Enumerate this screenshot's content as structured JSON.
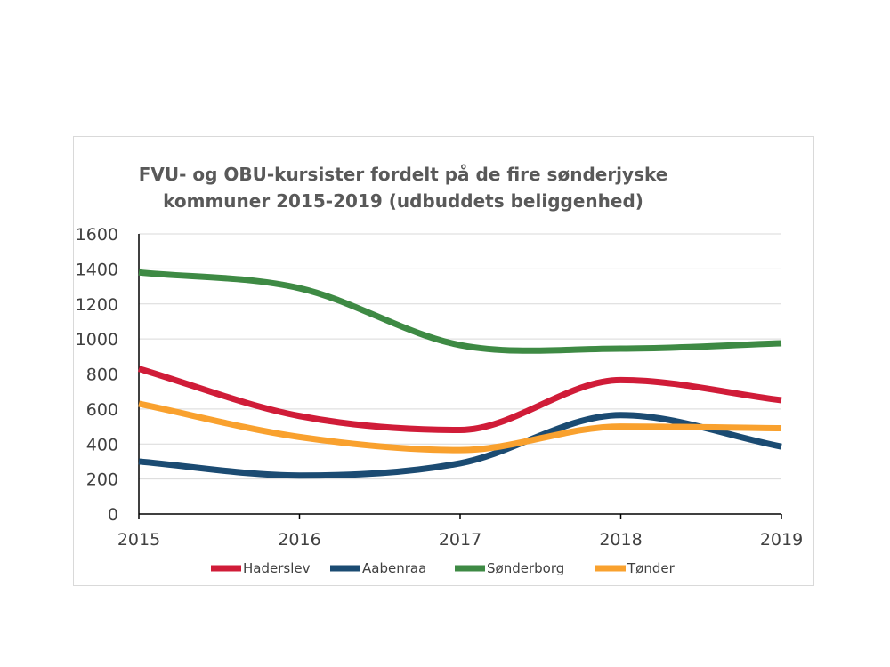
{
  "chart_data": {
    "type": "line",
    "title": "FVU- og OBU-kursister fordelt på de fire sønderjyske kommuner 2015-2019 (udbuddets beliggenhed)",
    "title_lines": [
      "FVU- og OBU-kursister fordelt på de fire sønderjyske",
      "kommuner 2015-2019 (udbuddets beliggenhed)"
    ],
    "x": [
      2015,
      2016,
      2017,
      2018,
      2019
    ],
    "xtick_labels": [
      "2015",
      "2016",
      "2017",
      "2018",
      "2019"
    ],
    "ylim": [
      0,
      1600
    ],
    "yticks": [
      0,
      200,
      400,
      600,
      800,
      1000,
      1200,
      1400,
      1600
    ],
    "ytick_labels": [
      "0",
      "200",
      "400",
      "600",
      "800",
      "1000",
      "1200",
      "1400",
      "1600"
    ],
    "grid": true,
    "smooth": true,
    "legend_position": "bottom",
    "series": [
      {
        "name": "Haderslev",
        "color": "#d01c38",
        "values": [
          830,
          560,
          480,
          765,
          650
        ]
      },
      {
        "name": "Aabenraa",
        "color": "#1b4b72",
        "values": [
          300,
          220,
          290,
          565,
          385
        ]
      },
      {
        "name": "Sønderborg",
        "color": "#3e8a44",
        "values": [
          1380,
          1290,
          965,
          945,
          975
        ]
      },
      {
        "name": "Tønder",
        "color": "#f9a12e",
        "values": [
          630,
          440,
          365,
          500,
          490
        ]
      }
    ]
  }
}
